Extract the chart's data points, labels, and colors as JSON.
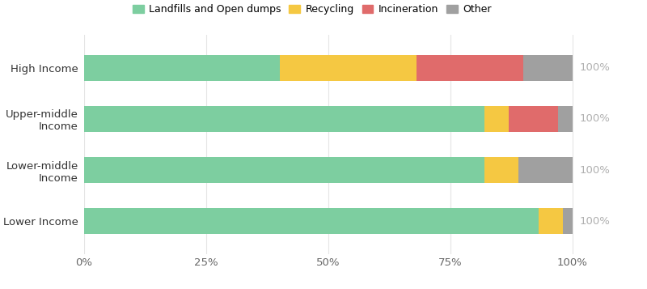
{
  "categories": [
    "Lower Income",
    "Lower-middle\nIncome",
    "Upper-middle\nIncome",
    "High Income"
  ],
  "series": {
    "Landfills and Open dumps": [
      93,
      82,
      82,
      40
    ],
    "Recycling": [
      5,
      7,
      5,
      28
    ],
    "Incineration": [
      0,
      0,
      10,
      22
    ],
    "Other": [
      2,
      11,
      3,
      10
    ]
  },
  "colors": {
    "Landfills and Open dumps": "#7dcea0",
    "Recycling": "#f5c842",
    "Incineration": "#e06b6b",
    "Other": "#a0a0a0"
  },
  "legend_order": [
    "Landfills and Open dumps",
    "Recycling",
    "Incineration",
    "Other"
  ],
  "bar_label_color": "#b0b0b0",
  "bar_label": "100%",
  "xlabel_ticks": [
    0,
    25,
    50,
    75,
    100
  ],
  "xlabel_labels": [
    "0%",
    "25%",
    "50%",
    "75%",
    "100%"
  ],
  "background_color": "#ffffff",
  "grid_color": "#e5e5e5",
  "bar_height": 0.5,
  "figsize": [
    8.0,
    3.57
  ],
  "dpi": 100
}
